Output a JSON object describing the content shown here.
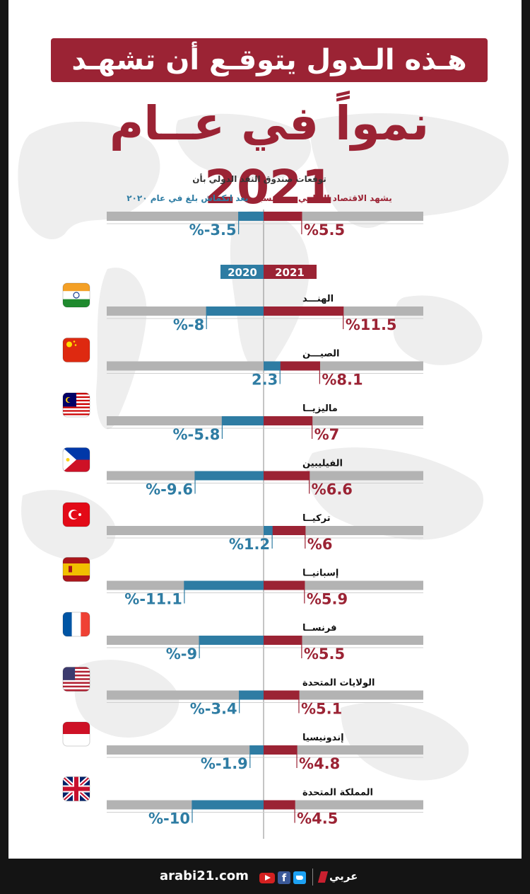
{
  "header": {
    "title_line1": "هـذه الـدول يتوقـع أن تشهـد",
    "title_line2": "نمواً في عــام 2021"
  },
  "intro": {
    "line1": "توقعات صندوق النقد الدولي بأن",
    "line2_red": "يشهد الاقتصاد العالمي نموا نسبته",
    "line2_blue": " بعد انكماش بلغ  في عام ٢٠٢٠"
  },
  "colors": {
    "year_2021": "#9b2334",
    "year_2020": "#2e7ca3",
    "track": "#b3b3b3",
    "page_bg": "#ffffff",
    "frame": "#141414"
  },
  "chart_data": {
    "type": "bar",
    "orientation": "horizontal-diverging",
    "legend": {
      "placement": "center-top",
      "entries": [
        "2020",
        "2021"
      ]
    },
    "global": {
      "v2021": 5.5,
      "v2020": -3.5,
      "label2021": "%5.5",
      "label2020": "%-3.5"
    },
    "categories": [
      "الهنـــد",
      "الصيـــن",
      "ماليزيــا",
      "الفيليبين",
      "تركيــا",
      "إسبانيــا",
      "فرنســا",
      "الولايات المتحدة",
      "إندونيسيا",
      "المملكة المتحدة"
    ],
    "flags": [
      "india-flag",
      "china-flag",
      "malaysia-flag",
      "philippines-flag",
      "turkey-flag",
      "spain-flag",
      "france-flag",
      "usa-flag",
      "indonesia-flag",
      "uk-flag"
    ],
    "series": [
      {
        "name": "2021",
        "values": [
          11.5,
          8.1,
          7,
          6.6,
          6,
          5.9,
          5.5,
          5.1,
          4.8,
          4.5
        ],
        "labels": [
          "%11.5",
          "%8.1",
          "%7",
          "%6.6",
          "%6",
          "%5.9",
          "%5.5",
          "%5.1",
          "%4.8",
          "%4.5"
        ]
      },
      {
        "name": "2020",
        "values": [
          -8,
          2.3,
          -5.8,
          -9.6,
          1.2,
          -11.1,
          -9,
          -3.4,
          -1.9,
          -10
        ],
        "labels": [
          "%-8",
          "2.3",
          "%-5.8",
          "%-9.6",
          "%1.2",
          "%-11.1",
          "%-9",
          "%-3.4",
          "%-1.9",
          "%-10"
        ]
      }
    ]
  },
  "footer": {
    "site": "arabi21.com",
    "brand_ar": "عربي"
  }
}
